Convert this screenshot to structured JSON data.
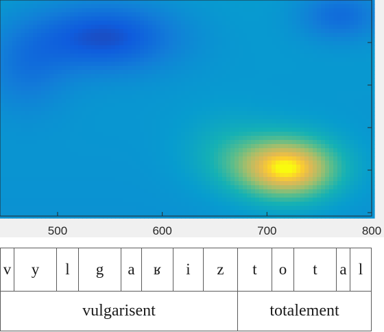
{
  "chart_data": {
    "type": "heatmap",
    "colormap": "parula",
    "xlim": [
      445,
      800
    ],
    "xticks": [
      500,
      600,
      700,
      800
    ],
    "grid": false,
    "blobs": [
      {
        "x": 545,
        "y": 0.83,
        "sx": 70,
        "sy": 0.16,
        "w": -0.33
      },
      {
        "x": 470,
        "y": 0.68,
        "sx": 40,
        "sy": 0.2,
        "w": -0.15
      },
      {
        "x": 770,
        "y": 0.93,
        "sx": 40,
        "sy": 0.12,
        "w": -0.22
      },
      {
        "x": 720,
        "y": 0.22,
        "sx": 50,
        "sy": 0.15,
        "w": 0.58
      },
      {
        "x": 660,
        "y": 0.3,
        "sx": 45,
        "sy": 0.18,
        "w": 0.12
      }
    ],
    "base_level": 0.4
  },
  "annotation": {
    "phones": [
      "v",
      "y",
      "l",
      "g",
      "a",
      "ʁ",
      "i",
      "z",
      "t",
      "o",
      "t",
      "a",
      "l"
    ],
    "words": [
      "vulgarisent",
      "totalement"
    ]
  }
}
